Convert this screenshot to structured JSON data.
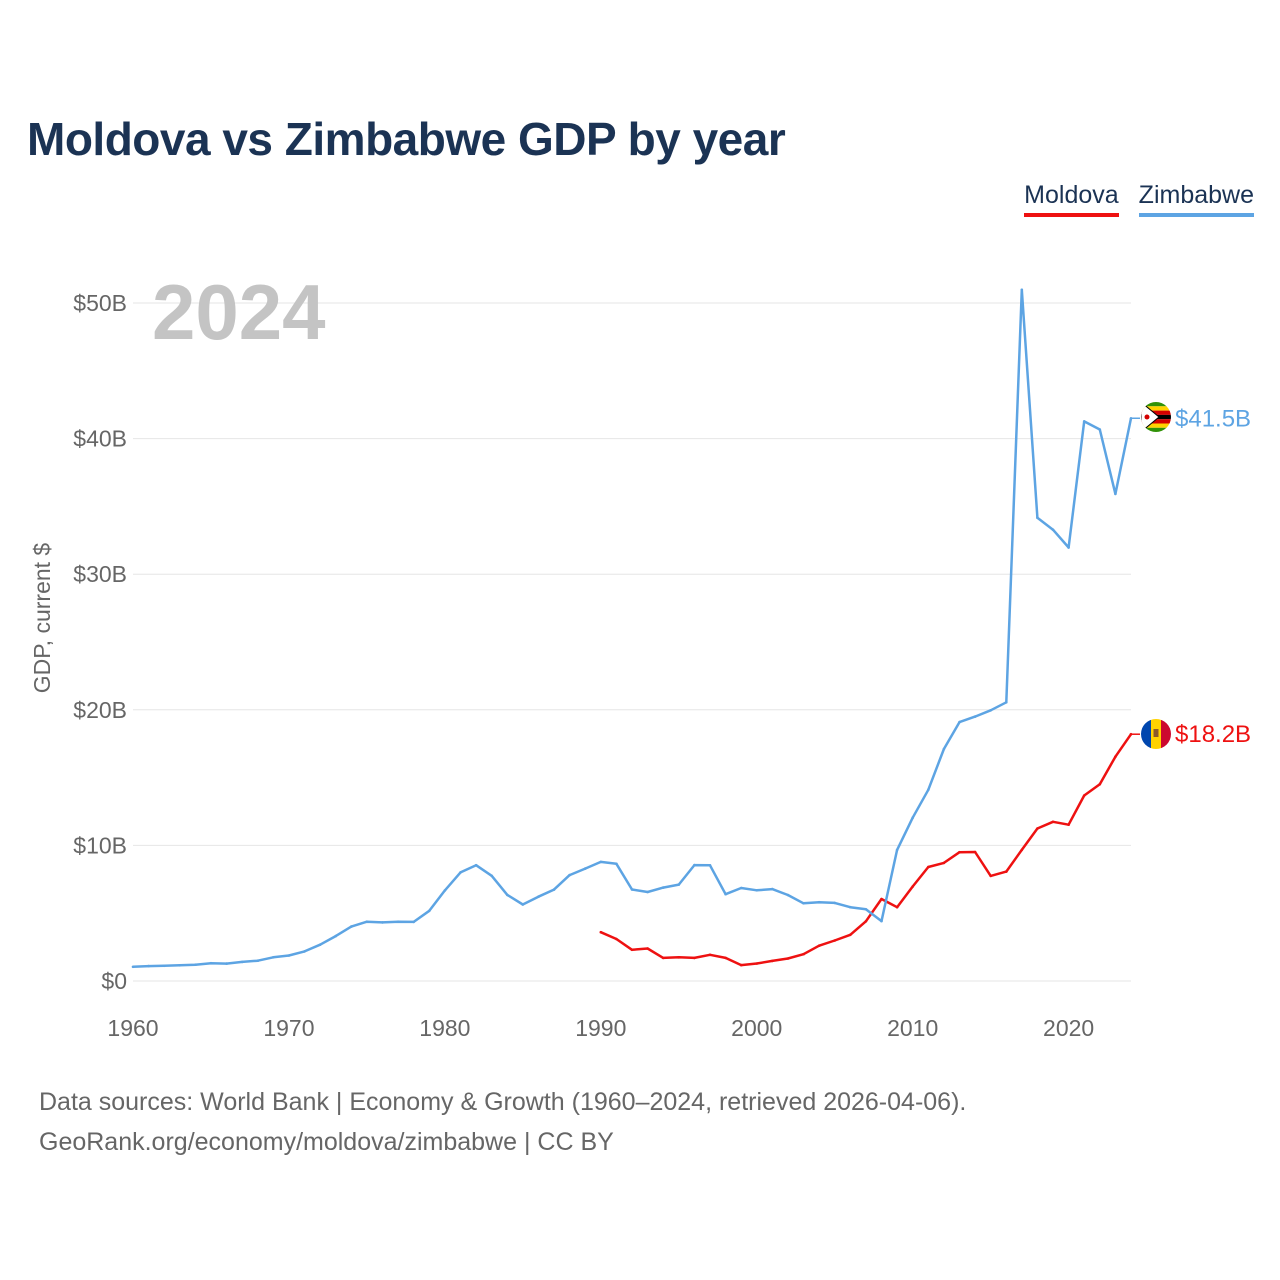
{
  "title": "Moldova vs Zimbabwe GDP by year",
  "footer": {
    "line1": "Data sources: World Bank | Economy & Growth (1960–2024, retrieved 2026-04-06).",
    "line2": "GeoRank.org/economy/moldova/zimbabwe | CC BY"
  },
  "chart_data": {
    "type": "line",
    "title": "Moldova vs Zimbabwe GDP by year",
    "year_label": "2024",
    "ylabel": "GDP, current $",
    "xlabel": "",
    "xlim": [
      1960,
      2024
    ],
    "ylim": [
      0,
      50
    ],
    "y_unit": "billions of current US$",
    "grid": true,
    "legend_position": "top-right",
    "x_ticks": [
      1960,
      1970,
      1980,
      1990,
      2000,
      2010,
      2020
    ],
    "x_tick_labels": [
      "1960",
      "1970",
      "1980",
      "1990",
      "2000",
      "2010",
      "2020"
    ],
    "y_ticks": [
      0,
      10,
      20,
      30,
      40,
      50
    ],
    "y_tick_labels": [
      "$0",
      "$10B",
      "$20B",
      "$30B",
      "$40B",
      "$50B"
    ],
    "series": [
      {
        "name": "Moldova",
        "color": "#ee1111",
        "end_label": "$18.2B",
        "flag": "moldova-flag",
        "x": [
          1990,
          1991,
          1992,
          1993,
          1994,
          1995,
          1996,
          1997,
          1998,
          1999,
          2000,
          2001,
          2002,
          2003,
          2004,
          2005,
          2006,
          2007,
          2008,
          2009,
          2010,
          2011,
          2012,
          2013,
          2014,
          2015,
          2016,
          2017,
          2018,
          2019,
          2020,
          2021,
          2022,
          2023,
          2024
        ],
        "values": [
          3.6,
          3.1,
          2.3,
          2.4,
          1.7,
          1.75,
          1.7,
          1.93,
          1.7,
          1.17,
          1.29,
          1.48,
          1.66,
          1.98,
          2.6,
          2.99,
          3.41,
          4.4,
          6.05,
          5.44,
          6.97,
          8.41,
          8.71,
          9.5,
          9.51,
          7.75,
          8.07,
          9.67,
          11.25,
          11.74,
          11.53,
          13.68,
          14.51,
          16.54,
          18.2
        ]
      },
      {
        "name": "Zimbabwe",
        "color": "#5da4e3",
        "end_label": "$41.5B",
        "flag": "zimbabwe-flag",
        "x": [
          1960,
          1961,
          1962,
          1963,
          1964,
          1965,
          1966,
          1967,
          1968,
          1969,
          1970,
          1971,
          1972,
          1973,
          1974,
          1975,
          1976,
          1977,
          1978,
          1979,
          1980,
          1981,
          1982,
          1983,
          1984,
          1985,
          1986,
          1987,
          1988,
          1989,
          1990,
          1991,
          1992,
          1993,
          1994,
          1995,
          1996,
          1997,
          1998,
          1999,
          2000,
          2001,
          2002,
          2003,
          2004,
          2005,
          2006,
          2007,
          2008,
          2009,
          2010,
          2011,
          2012,
          2013,
          2014,
          2015,
          2016,
          2017,
          2018,
          2019,
          2020,
          2021,
          2022,
          2023,
          2024
        ],
        "values": [
          1.05,
          1.1,
          1.12,
          1.16,
          1.2,
          1.31,
          1.28,
          1.41,
          1.5,
          1.75,
          1.88,
          2.18,
          2.68,
          3.31,
          4.01,
          4.37,
          4.32,
          4.37,
          4.36,
          5.18,
          6.68,
          8.01,
          8.54,
          7.76,
          6.35,
          5.64,
          6.22,
          6.74,
          7.81,
          8.29,
          8.78,
          8.64,
          6.75,
          6.56,
          6.89,
          7.11,
          8.55,
          8.53,
          6.4,
          6.86,
          6.69,
          6.78,
          6.34,
          5.73,
          5.81,
          5.76,
          5.44,
          5.29,
          4.42,
          9.67,
          12.04,
          14.1,
          17.11,
          19.09,
          19.5,
          19.96,
          20.55,
          50.97,
          34.16,
          33.28,
          31.97,
          41.27,
          40.67,
          35.92,
          41.5
        ]
      }
    ]
  }
}
